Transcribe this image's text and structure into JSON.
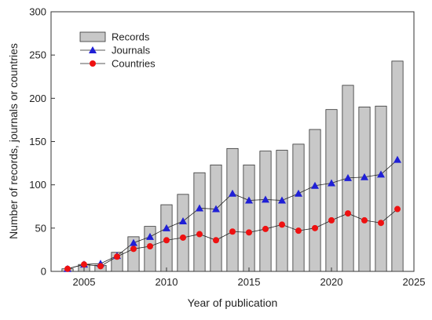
{
  "chart_data": {
    "type": "bar",
    "xlabel": "Year of publication",
    "ylabel": "Number of records, journals or countries",
    "xlim": [
      2003,
      2025
    ],
    "ylim": [
      0,
      300
    ],
    "x_ticks": [
      "2005",
      "2010",
      "2015",
      "2020",
      "2025"
    ],
    "y_ticks": [
      "0",
      "50",
      "100",
      "150",
      "200",
      "250",
      "300"
    ],
    "grid": false,
    "legend_position": "top-left",
    "years": [
      2004,
      2005,
      2006,
      2007,
      2008,
      2009,
      2010,
      2011,
      2012,
      2013,
      2014,
      2015,
      2016,
      2017,
      2018,
      2019,
      2020,
      2021,
      2022,
      2023,
      2024
    ],
    "series": [
      {
        "name": "Records",
        "type": "bar",
        "color": "#c8c8c8",
        "values": [
          3,
          8,
          7,
          22,
          40,
          52,
          77,
          89,
          114,
          123,
          142,
          123,
          139,
          140,
          147,
          164,
          187,
          215,
          190,
          191,
          243
        ]
      },
      {
        "name": "Journals",
        "type": "line",
        "marker": "triangle",
        "color": "#1f1fd6",
        "values": [
          3,
          8,
          9,
          18,
          33,
          40,
          50,
          58,
          73,
          72,
          90,
          82,
          83,
          82,
          90,
          99,
          102,
          108,
          109,
          112,
          129
        ]
      },
      {
        "name": "Countries",
        "type": "line",
        "marker": "circle",
        "color": "#ee1111",
        "values": [
          3,
          8,
          6,
          17,
          26,
          29,
          36,
          39,
          43,
          36,
          46,
          45,
          49,
          54,
          47,
          50,
          59,
          67,
          59,
          56,
          72
        ]
      }
    ]
  }
}
